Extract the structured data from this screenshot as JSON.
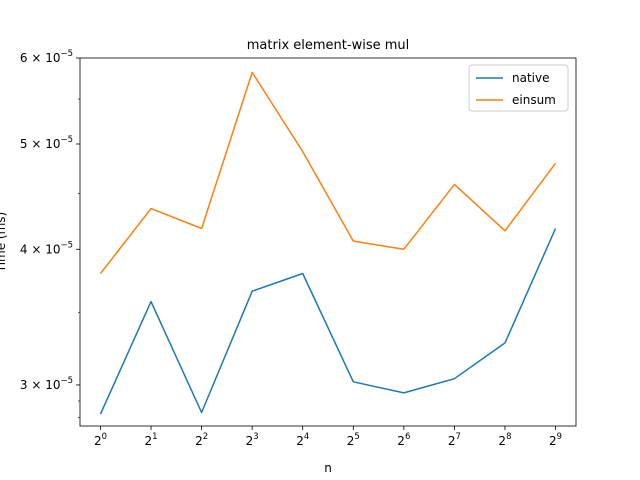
{
  "chart_data": {
    "type": "line",
    "title": "matrix element-wise mul",
    "xlabel": "n",
    "ylabel": "Time (ms)",
    "x": [
      1,
      2,
      4,
      8,
      16,
      32,
      64,
      128,
      256,
      512
    ],
    "x_scale": "log2",
    "y_scale": "log",
    "xticks": [
      {
        "base": "2",
        "exp": "0"
      },
      {
        "base": "2",
        "exp": "1"
      },
      {
        "base": "2",
        "exp": "2"
      },
      {
        "base": "2",
        "exp": "3"
      },
      {
        "base": "2",
        "exp": "4"
      },
      {
        "base": "2",
        "exp": "5"
      },
      {
        "base": "2",
        "exp": "6"
      },
      {
        "base": "2",
        "exp": "7"
      },
      {
        "base": "2",
        "exp": "8"
      },
      {
        "base": "2",
        "exp": "9"
      }
    ],
    "yticks": [
      {
        "value": 3e-05,
        "mantissa": "3",
        "exp": "−5"
      },
      {
        "value": 4e-05,
        "mantissa": "4",
        "exp": "−5"
      },
      {
        "value": 5e-05,
        "mantissa": "5",
        "exp": "−5"
      },
      {
        "value": 6e-05,
        "mantissa": "6",
        "exp": "−5"
      }
    ],
    "ylim": [
      2.75e-05,
      6e-05
    ],
    "series": [
      {
        "name": "native",
        "color": "#1f77b4",
        "values": [
          2.82e-05,
          3.58e-05,
          2.83e-05,
          3.66e-05,
          3.8e-05,
          3.02e-05,
          2.95e-05,
          3.04e-05,
          3.28e-05,
          4.18e-05
        ]
      },
      {
        "name": "einsum",
        "color": "#ff7f0e",
        "values": [
          3.8e-05,
          4.36e-05,
          4.18e-05,
          5.82e-05,
          4.92e-05,
          4.07e-05,
          4e-05,
          4.59e-05,
          4.16e-05,
          4.8e-05
        ]
      }
    ],
    "legend_position": "top-right",
    "grid": false
  }
}
